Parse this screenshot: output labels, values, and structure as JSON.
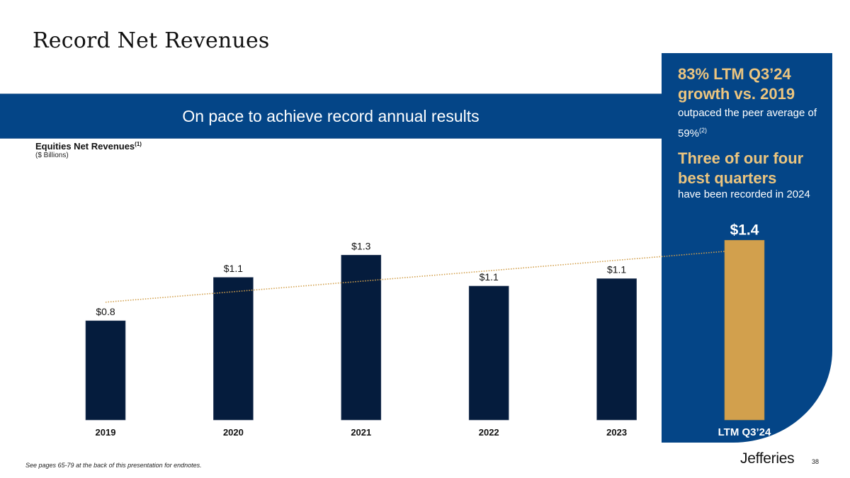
{
  "page": {
    "title": "Record Net Revenues",
    "banner": "On pace to achieve record annual results",
    "footnote": "See pages 65-79 at the back of this presentation for endnotes.",
    "logo": "Jefferies",
    "page_number": "38"
  },
  "panel": {
    "headline1": "83% LTM Q3’24 growth vs. 2019",
    "sub1_text": "outpaced the peer average of 59%",
    "sub1_note": "(2)",
    "headline2": "Three of our four best quarters",
    "sub2_text": "have been recorded in 2024"
  },
  "colors": {
    "navy_bar": "#051c3d",
    "highlight_bar": "#d2a04d",
    "panel_blue": "#044587",
    "trend_line": "#d2a04d",
    "headline_gold": "#ecc57f"
  },
  "chart_data": {
    "type": "bar",
    "title": "Equities Net Revenues",
    "title_note": "(1)",
    "subtitle": "($ Billions)",
    "xlabel": "",
    "ylabel": "",
    "categories": [
      "2019",
      "2020",
      "2021",
      "2022",
      "2023",
      "LTM Q3’24"
    ],
    "values": [
      0.8,
      1.15,
      1.33,
      1.08,
      1.14,
      1.45
    ],
    "data_labels": [
      "$0.8",
      "$1.1",
      "$1.3",
      "$1.1",
      "$1.1",
      "$1.4"
    ],
    "highlight_index": 5,
    "trendline": {
      "style": "dotted",
      "from_category": "2019",
      "to_category": "LTM Q3’24",
      "start_value": 0.95,
      "end_value": 1.36
    },
    "ylim": [
      0,
      1.6
    ],
    "grid": false,
    "legend": "none"
  }
}
